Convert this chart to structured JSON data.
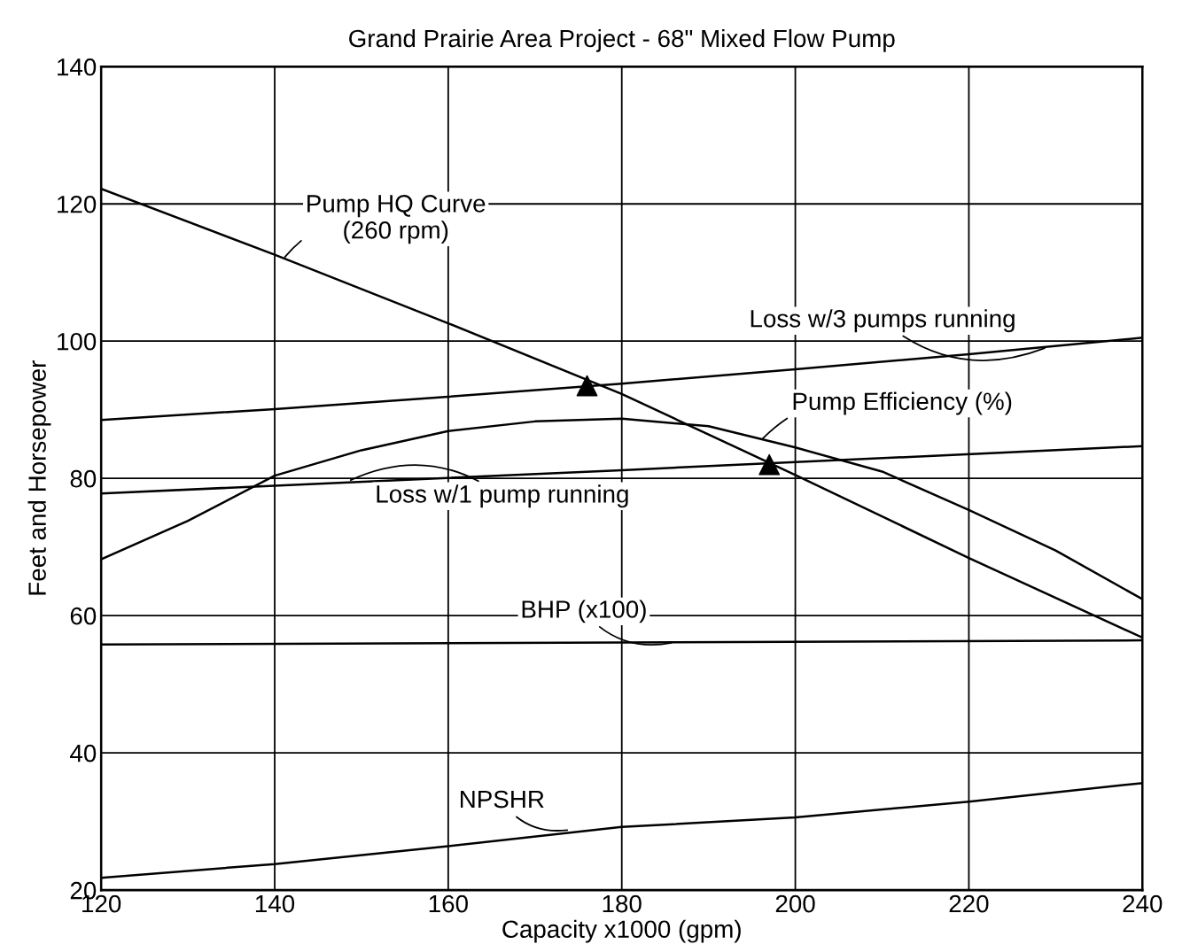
{
  "chart_data": {
    "type": "line",
    "title": "Grand Prairie Area Project - 68\" Mixed Flow Pump",
    "xlabel": "Capacity x1000 (gpm)",
    "ylabel": "Feet and Horsepower",
    "xlim": [
      120,
      240
    ],
    "xticks": [
      120,
      140,
      160,
      180,
      200,
      220,
      240
    ],
    "ylim": [
      20,
      140
    ],
    "yticks": [
      20,
      40,
      60,
      80,
      100,
      120,
      140
    ],
    "grid": true,
    "legend": false,
    "marker": "none",
    "line_style": "solid",
    "x": [
      120,
      130,
      140,
      150,
      160,
      170,
      180,
      190,
      200,
      210,
      220,
      230,
      240
    ],
    "series": [
      {
        "color": "#000000",
        "values": [
          122.2,
          null,
          112.6,
          null,
          102.6,
          null,
          92.3,
          null,
          80.5,
          null,
          68.4,
          null,
          56.8
        ]
      },
      {
        "color": "#000000",
        "values": [
          88.5,
          null,
          90.1,
          null,
          91.9,
          null,
          93.8,
          null,
          95.9,
          null,
          98.1,
          null,
          100.5
        ]
      },
      {
        "color": "#000000",
        "values": [
          68.2,
          73.8,
          80.4,
          84.1,
          86.9,
          88.3,
          88.7,
          87.6,
          84.5,
          81.0,
          75.4,
          69.5,
          62.4
        ]
      },
      {
        "color": "#000000",
        "values": [
          77.8,
          null,
          null,
          null,
          null,
          null,
          81.2,
          null,
          null,
          null,
          null,
          null,
          84.7
        ]
      },
      {
        "color": "#000000",
        "values": [
          55.8,
          null,
          null,
          null,
          null,
          null,
          56.1,
          null,
          null,
          null,
          null,
          null,
          56.4
        ]
      },
      {
        "color": "#000000",
        "values": [
          21.8,
          null,
          23.8,
          null,
          26.4,
          null,
          29.2,
          null,
          30.6,
          null,
          32.9,
          null,
          35.6
        ]
      },
      {
        "type": "scatter",
        "marker": "triangle",
        "color": "#000000",
        "x": [
          176,
          197
        ],
        "values": [
          93.5,
          82
        ]
      }
    ],
    "annotations": [
      {
        "text": "Pump HQ Curve\n(260 rpm)",
        "x": 141,
        "y": 112
      },
      {
        "text": "Loss w/3 pumps running",
        "x": 229,
        "y": 99.1
      },
      {
        "text": "Pump Efficiency (%)",
        "x": 196,
        "y": 85.5
      },
      {
        "text": "Loss w/1 pump running",
        "x": 148.5,
        "y": 79.6
      },
      {
        "text": "BHP (x100)",
        "x": 186,
        "y": 56.1
      },
      {
        "text": "NPSHR",
        "x": 174,
        "y": 28.8
      }
    ]
  }
}
